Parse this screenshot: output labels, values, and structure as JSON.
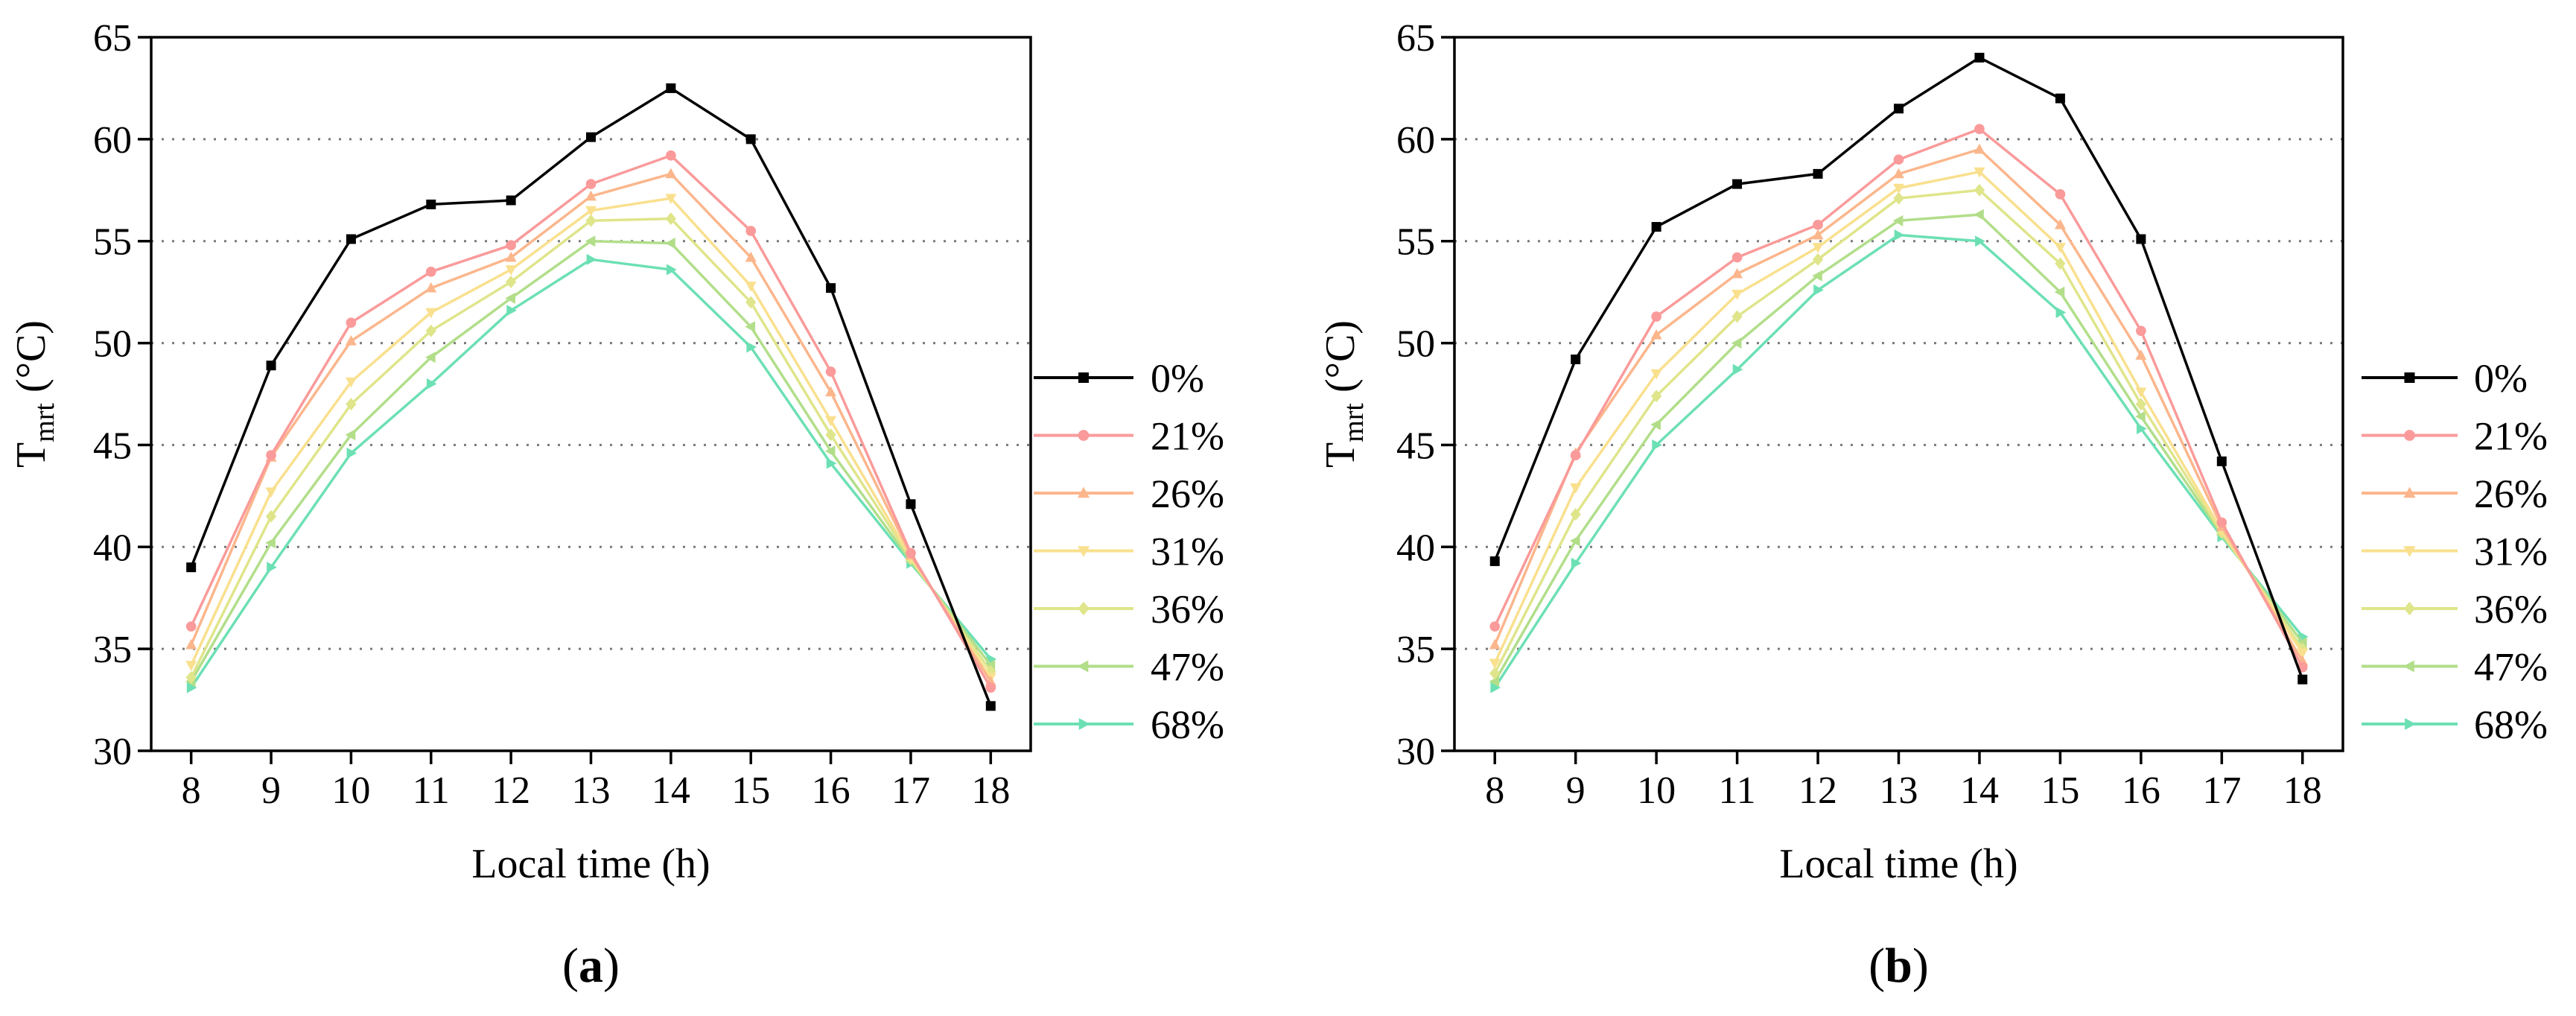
{
  "panels": [
    {
      "id": "a",
      "label": "a",
      "chart_data": {
        "type": "line",
        "title": "",
        "xlabel": "Local time (h)",
        "ylabel_main": "T",
        "ylabel_sub": "mrt",
        "ylabel_unit": " (°C)",
        "x": [
          8,
          9,
          10,
          11,
          12,
          13,
          14,
          15,
          16,
          17,
          18
        ],
        "xlim": [
          7.5,
          18.5
        ],
        "ylim": [
          30,
          65
        ],
        "yticks": [
          30,
          35,
          40,
          45,
          50,
          55,
          60,
          65
        ],
        "grid": "horizontal dotted",
        "legend": "right",
        "series": [
          {
            "name": "0%",
            "color": "#000000",
            "marker": "square",
            "values": [
              39.0,
              48.9,
              55.1,
              56.8,
              57.0,
              60.1,
              62.5,
              60.0,
              52.7,
              42.1,
              32.2
            ]
          },
          {
            "name": "21%",
            "color": "#FA9A9A",
            "marker": "circle",
            "values": [
              36.1,
              44.5,
              51.0,
              53.5,
              54.8,
              57.8,
              59.2,
              55.5,
              48.6,
              39.7,
              33.1
            ]
          },
          {
            "name": "26%",
            "color": "#FBB68C",
            "marker": "triangle-up",
            "values": [
              35.2,
              44.4,
              50.1,
              52.7,
              54.2,
              57.2,
              58.3,
              54.2,
              47.6,
              39.6,
              33.4
            ]
          },
          {
            "name": "31%",
            "color": "#F9E08E",
            "marker": "triangle-down",
            "values": [
              34.2,
              42.7,
              48.1,
              51.5,
              53.6,
              56.5,
              57.1,
              52.8,
              46.2,
              39.5,
              33.6
            ]
          },
          {
            "name": "36%",
            "color": "#DFE58A",
            "marker": "diamond",
            "values": [
              33.6,
              41.5,
              47.0,
              50.6,
              53.0,
              56.0,
              56.1,
              52.0,
              45.5,
              39.4,
              33.9
            ]
          },
          {
            "name": "47%",
            "color": "#B2DE8A",
            "marker": "triangle-left",
            "values": [
              33.4,
              40.2,
              45.5,
              49.3,
              52.2,
              55.0,
              54.9,
              50.8,
              44.7,
              39.3,
              34.2
            ]
          },
          {
            "name": "68%",
            "color": "#6CE0B4",
            "marker": "triangle-right",
            "values": [
              33.1,
              39.0,
              44.6,
              48.0,
              51.6,
              54.1,
              53.6,
              49.8,
              44.1,
              39.2,
              34.5
            ]
          }
        ]
      }
    },
    {
      "id": "b",
      "label": "b",
      "chart_data": {
        "type": "line",
        "title": "",
        "xlabel": "Local time (h)",
        "ylabel_main": "T",
        "ylabel_sub": "mrt",
        "ylabel_unit": " (°C)",
        "x": [
          8,
          9,
          10,
          11,
          12,
          13,
          14,
          15,
          16,
          17,
          18
        ],
        "xlim": [
          7.5,
          18.5
        ],
        "ylim": [
          30,
          65
        ],
        "yticks": [
          30,
          35,
          40,
          45,
          50,
          55,
          60,
          65
        ],
        "grid": "horizontal dotted",
        "legend": "right",
        "series": [
          {
            "name": "0%",
            "color": "#000000",
            "marker": "square",
            "values": [
              39.3,
              49.2,
              55.7,
              57.8,
              58.3,
              61.5,
              64.0,
              62.0,
              55.1,
              44.2,
              33.5
            ]
          },
          {
            "name": "21%",
            "color": "#FA9A9A",
            "marker": "circle",
            "values": [
              36.1,
              44.5,
              51.3,
              54.2,
              55.8,
              59.0,
              60.5,
              57.3,
              50.6,
              41.2,
              34.1
            ]
          },
          {
            "name": "26%",
            "color": "#FBB68C",
            "marker": "triangle-up",
            "values": [
              35.2,
              44.6,
              50.4,
              53.4,
              55.3,
              58.3,
              59.5,
              55.8,
              49.4,
              41.0,
              34.4
            ]
          },
          {
            "name": "31%",
            "color": "#F9E08E",
            "marker": "triangle-down",
            "values": [
              34.3,
              42.9,
              48.5,
              52.4,
              54.7,
              57.6,
              58.4,
              54.7,
              47.6,
              40.8,
              34.8
            ]
          },
          {
            "name": "36%",
            "color": "#DFE58A",
            "marker": "diamond",
            "values": [
              33.8,
              41.6,
              47.4,
              51.3,
              54.1,
              57.1,
              57.5,
              53.9,
              47.0,
              40.7,
              35.0
            ]
          },
          {
            "name": "47%",
            "color": "#B2DE8A",
            "marker": "triangle-left",
            "values": [
              33.4,
              40.3,
              46.0,
              50.0,
              53.3,
              56.0,
              56.3,
              52.5,
              46.4,
              40.6,
              35.3
            ]
          },
          {
            "name": "68%",
            "color": "#6CE0B4",
            "marker": "triangle-right",
            "values": [
              33.1,
              39.2,
              45.0,
              48.7,
              52.6,
              55.3,
              55.0,
              51.5,
              45.8,
              40.5,
              35.6
            ]
          }
        ]
      }
    }
  ]
}
